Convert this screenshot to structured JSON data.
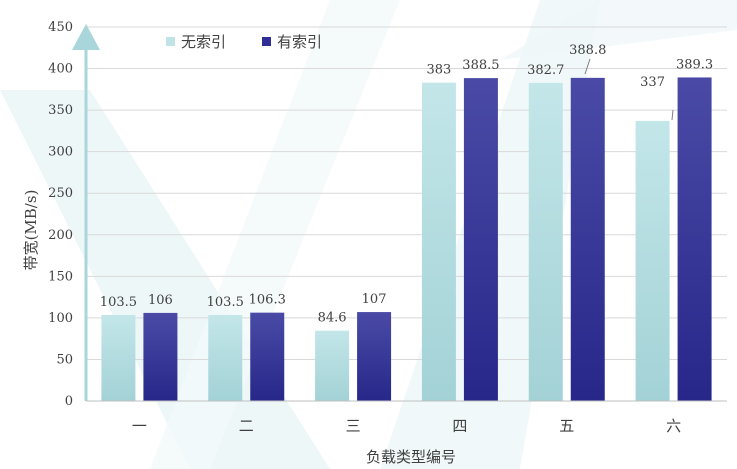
{
  "chart_data": {
    "type": "bar",
    "xlabel": "负载类型编号",
    "ylabel": "带宽(MB/s)",
    "categories": [
      "一",
      "二",
      "三",
      "四",
      "五",
      "六"
    ],
    "series": [
      {
        "name": "无索引",
        "values": [
          103.5,
          103.5,
          84.6,
          383,
          382.7,
          337
        ],
        "labels": [
          "103.5",
          "103.5",
          "84.6",
          "383",
          "382.7",
          "337"
        ],
        "color": "#bfe3e6"
      },
      {
        "name": "有索引",
        "values": [
          106,
          106.3,
          107,
          388.5,
          388.8,
          389.3
        ],
        "labels": [
          "106",
          "106.3",
          "107",
          "388.5",
          "388.8",
          "389.3"
        ],
        "color": "#2e2e96"
      }
    ],
    "ylim": [
      0,
      450
    ],
    "yticks": [
      "0",
      "50",
      "100",
      "150",
      "200",
      "250",
      "300",
      "350",
      "400",
      "450"
    ],
    "grid": true,
    "legend": "top-left"
  }
}
